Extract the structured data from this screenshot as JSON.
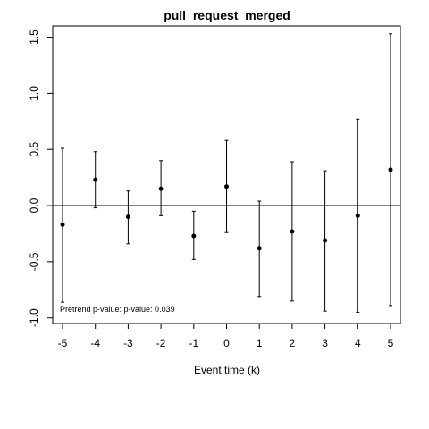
{
  "chart_data": {
    "type": "scatter",
    "title": "pull_request_merged",
    "xlabel": "Event time (k)",
    "ylabel": "",
    "xlim": [
      -5.3,
      5.3
    ],
    "ylim": [
      -1.05,
      1.6
    ],
    "x_ticks": [
      -5,
      -4,
      -3,
      -2,
      -1,
      0,
      1,
      2,
      3,
      4,
      5
    ],
    "x_tick_labels": [
      "-5",
      "-4",
      "-3",
      "-2",
      "-1",
      "0",
      "1",
      "2",
      "3",
      "4",
      "5"
    ],
    "y_ticks": [
      -1.0,
      -0.5,
      0.0,
      0.5,
      1.0,
      1.5
    ],
    "y_tick_labels": [
      "-1.0",
      "-0.5",
      "0.0",
      "0.5",
      "1.0",
      "1.5"
    ],
    "reference_line": 0,
    "grid": false,
    "annotation": "Pretrend p-value: p-value: 0.039",
    "points": [
      {
        "x": -5,
        "y": -0.17,
        "lower": -0.86,
        "upper": 0.51
      },
      {
        "x": -4,
        "y": 0.23,
        "lower": -0.02,
        "upper": 0.48
      },
      {
        "x": -3,
        "y": -0.1,
        "lower": -0.34,
        "upper": 0.13
      },
      {
        "x": -2,
        "y": 0.15,
        "lower": -0.09,
        "upper": 0.4
      },
      {
        "x": -1,
        "y": -0.27,
        "lower": -0.48,
        "upper": -0.05
      },
      {
        "x": 0,
        "y": 0.17,
        "lower": -0.24,
        "upper": 0.58
      },
      {
        "x": 1,
        "y": -0.38,
        "lower": -0.81,
        "upper": 0.04
      },
      {
        "x": 2,
        "y": -0.23,
        "lower": -0.85,
        "upper": 0.39
      },
      {
        "x": 3,
        "y": -0.31,
        "lower": -0.94,
        "upper": 0.31
      },
      {
        "x": 4,
        "y": -0.09,
        "lower": -0.95,
        "upper": 0.77
      },
      {
        "x": 5,
        "y": 0.32,
        "lower": -0.89,
        "upper": 1.53
      }
    ]
  }
}
